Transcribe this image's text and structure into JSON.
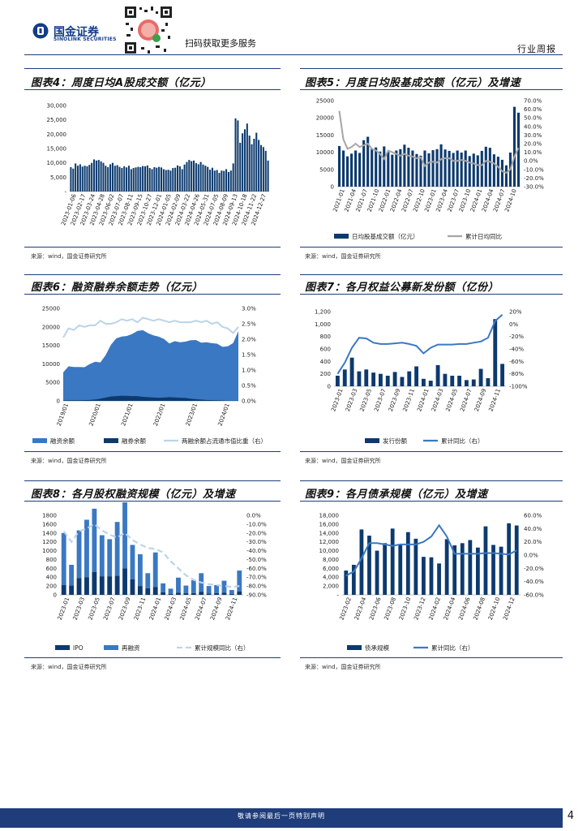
{
  "header": {
    "logo_cn": "国金证券",
    "logo_en": "SINOLINK SECURITIES",
    "scan_text": "扫码获取更多服务",
    "report_type": "行业周报"
  },
  "footer": {
    "disclaimer": "敬请参阅最后一页特别声明",
    "page_number": "4"
  },
  "colors": {
    "navy": "#1f3d7a",
    "bar": "#0d3a6e",
    "blue": "#3b78c3",
    "gray": "#a6a6a6",
    "lightblue": "#bcd4ea"
  },
  "chart_data": [
    {
      "id": "chart4",
      "type": "bar",
      "title": "图表4：周度日均A股成交额（亿元）",
      "source": "来源：wind，国金证券研究所",
      "y_ticks": [
        "30,000",
        "25,000",
        "20,000",
        "15,000",
        "10,000",
        "5,000",
        "-"
      ],
      "ylim": [
        0,
        30000
      ],
      "x_tick_labels": [
        "2023-01-06",
        "2023-02-17",
        "2023-03-24",
        "2023-04-28",
        "2023-06-02",
        "2023-07-07",
        "2023-08-11",
        "2023-09-15",
        "2023-10-27",
        "2023-12-01",
        "2024-01-05",
        "2024-02-09",
        "2024-03-22",
        "2024-04-26",
        "2024-05-31",
        "2024-07-05",
        "2024-08-09",
        "2024-09-13",
        "2024-10-18",
        "2024-11-22",
        "2024-12-27"
      ],
      "values": [
        8500,
        8000,
        9800,
        9000,
        9500,
        8700,
        9000,
        8800,
        9300,
        10000,
        11200,
        10800,
        11000,
        10500,
        10000,
        9000,
        8500,
        9500,
        10000,
        9000,
        9200,
        8600,
        8200,
        8800,
        8400,
        9000,
        7800,
        8200,
        8400,
        8600,
        8500,
        8900,
        8800,
        9100,
        8200,
        7800,
        8500,
        8300,
        8600,
        8400,
        7800,
        7500,
        7600,
        7300,
        8200,
        8300,
        9100,
        8800,
        7800,
        9400,
        10300,
        11000,
        10600,
        10800,
        9900,
        9500,
        10300,
        9400,
        9000,
        8600,
        7600,
        8300,
        7300,
        7500,
        6500,
        7300,
        7200,
        7800,
        6800,
        7300,
        9800,
        25500,
        24800,
        17000,
        20300,
        21700,
        23700,
        19500,
        16500,
        18400,
        20500,
        18000,
        16200,
        15500,
        14200,
        10800
      ]
    },
    {
      "id": "chart5",
      "type": "bar+line",
      "title": "图表5：月度日均股基成交额（亿元）及增速",
      "source": "来源：wind，国金证券研究所",
      "y_ticks": [
        "25000",
        "20000",
        "15000",
        "10000",
        "5000",
        "0"
      ],
      "ylim": [
        0,
        25000
      ],
      "y2_ticks": [
        "70.0%",
        "60.0%",
        "50.0%",
        "40.0%",
        "30.0%",
        "20.0%",
        "10.0%",
        "0.0%",
        "-10.0%",
        "-20.0%",
        "-30.0%"
      ],
      "y2lim": [
        -30,
        70
      ],
      "x_tick_labels": [
        "2021-01",
        "2021-04",
        "2021-07",
        "2021-10",
        "2022-01",
        "2022-04",
        "2022-07",
        "2022-10",
        "2023-01",
        "2023-04",
        "2023-07",
        "2023-10",
        "2024-01",
        "2024-04",
        "2024-07",
        "2024-10"
      ],
      "series": [
        {
          "name": "日均股基成交额（亿元）",
          "values": [
            11800,
            10500,
            8800,
            9600,
            10500,
            9800,
            13500,
            14500,
            11000,
            11400,
            10200,
            11700,
            10100,
            9300,
            10500,
            10900,
            12200,
            11300,
            10500,
            9500,
            9000,
            10500,
            9700,
            10600,
            10900,
            12300,
            10800,
            10400,
            9800,
            10500,
            9900,
            10500,
            8900,
            9600,
            9100,
            10400,
            11600,
            11300,
            9400,
            8700,
            7800,
            6200,
            9900,
            23200,
            21500
          ]
        },
        {
          "name": "累计日均同比",
          "values": [
            58,
            25,
            14,
            16,
            20,
            16,
            18,
            20,
            14,
            12,
            8,
            2,
            12,
            10,
            8,
            6,
            8,
            6,
            5,
            3,
            4,
            -6,
            -2,
            -1,
            -2,
            2,
            3,
            3,
            0,
            0,
            1,
            0,
            -2,
            -3,
            -5,
            -5,
            0,
            -1,
            -3,
            -7,
            -12,
            -14,
            -10,
            5,
            15
          ]
        }
      ]
    },
    {
      "id": "chart6",
      "type": "area+line",
      "title": "图表6：融资融券余额走势（亿元）",
      "source": "来源：wind，国金证券研究所",
      "y_ticks": [
        "25000",
        "20000",
        "15000",
        "10000",
        "5000",
        "0"
      ],
      "ylim": [
        0,
        25000
      ],
      "y2_ticks": [
        "3.0%",
        "2.5%",
        "2.0%",
        "1.5%",
        "1.0%",
        "0.5%",
        "0.0%"
      ],
      "y2lim": [
        0,
        3
      ],
      "x_tick_labels": [
        "2019/01",
        "2020/01",
        "2021/01",
        "2022/01",
        "2023/01",
        "2024/01"
      ],
      "series": [
        {
          "name": "融资余额",
          "values": [
            7600,
            9200,
            9000,
            9000,
            8900,
            9700,
            10200,
            9800,
            11500,
            14000,
            15600,
            16000,
            16200,
            16800,
            17600,
            18000,
            17300,
            16800,
            16500,
            15800,
            14500,
            15200,
            15000,
            15200,
            15800,
            16000,
            15400,
            15600,
            15400,
            15300,
            14500,
            14700,
            15600,
            18800
          ]
        },
        {
          "name": "融券余额",
          "values": [
            100,
            150,
            150,
            150,
            200,
            250,
            400,
            600,
            900,
            1200,
            1300,
            1400,
            1350,
            1300,
            1300,
            1100,
            1000,
            900,
            850,
            900,
            1000,
            950,
            850,
            800,
            600,
            450,
            350,
            250,
            200,
            150,
            100,
            60,
            40,
            40
          ]
        },
        {
          "name": "两融余额占流通市值比重（右）",
          "values": [
            2.05,
            2.35,
            2.3,
            2.45,
            2.4,
            2.45,
            2.45,
            2.6,
            2.5,
            2.5,
            2.55,
            2.65,
            2.6,
            2.65,
            2.55,
            2.7,
            2.65,
            2.6,
            2.65,
            2.6,
            2.55,
            2.6,
            2.55,
            2.55,
            2.55,
            2.6,
            2.55,
            2.6,
            2.5,
            2.55,
            2.4,
            2.35,
            2.2,
            2.4
          ]
        }
      ]
    },
    {
      "id": "chart7",
      "type": "bar+line",
      "title": "图表7：各月权益公募新发份额（亿份）",
      "source": "来源：wind，国金证券研究所",
      "y_ticks": [
        "1,200",
        "1,000",
        "800",
        "600",
        "400",
        "200",
        "0"
      ],
      "ylim": [
        0,
        1200
      ],
      "y2_ticks": [
        "20%",
        "0%",
        "-20%",
        "-40%",
        "-60%",
        "-80%",
        "-100%"
      ],
      "y2lim": [
        -100,
        20
      ],
      "x_tick_labels": [
        "2023-01",
        "2023-03",
        "2023-05",
        "2023-07",
        "2023-09",
        "2023-11",
        "2024-01",
        "2024-03",
        "2024-05",
        "2024-07",
        "2024-09",
        "2024-11"
      ],
      "series": [
        {
          "name": "发行份额",
          "values": [
            170,
            270,
            460,
            240,
            270,
            220,
            200,
            170,
            230,
            150,
            240,
            320,
            120,
            90,
            340,
            200,
            170,
            170,
            100,
            110,
            280,
            130,
            1080,
            360
          ]
        },
        {
          "name": "累计同比（右）",
          "values": [
            -80,
            -62,
            -38,
            -22,
            -23,
            -30,
            -32,
            -32,
            -31,
            -30,
            -32,
            -35,
            -47,
            -38,
            -33,
            -33,
            -33,
            -32,
            -32,
            -30,
            -28,
            -22,
            5,
            15
          ]
        }
      ]
    },
    {
      "id": "chart8",
      "type": "bar+line",
      "title": "图表8：各月股权融资规模（亿元）及增速",
      "source": "来源：wind，国金证券研究所",
      "y_ticks": [
        "1800",
        "1600",
        "1400",
        "1200",
        "1000",
        "800",
        "600",
        "400",
        "200",
        "0"
      ],
      "ylim": [
        0,
        1800
      ],
      "y2_ticks": [
        "0.0%",
        "-10.0%",
        "-20.0%",
        "-30.0%",
        "-40.0%",
        "-50.0%",
        "-60.0%",
        "-70.0%",
        "-80.0%",
        "-90.0%"
      ],
      "y2lim": [
        -90,
        0
      ],
      "x_tick_labels": [
        "2023-01",
        "2023-03",
        "2023-05",
        "2023-07",
        "2023-09",
        "2023-11",
        "2024-01",
        "2024-03",
        "2024-05",
        "2024-07",
        "2024-09",
        "2024-11"
      ],
      "series": [
        {
          "name": "IPO",
          "values": [
            220,
            210,
            380,
            400,
            520,
            420,
            420,
            430,
            600,
            350,
            200,
            150,
            180,
            60,
            20,
            50,
            40,
            40,
            70,
            30,
            40,
            50,
            20,
            80
          ]
        },
        {
          "name": "再融资",
          "values": [
            1180,
            470,
            1080,
            1300,
            1430,
            930,
            840,
            1220,
            1560,
            780,
            720,
            340,
            780,
            200,
            120,
            340,
            170,
            290,
            420,
            170,
            180,
            270,
            90,
            470
          ]
        },
        {
          "name": "累计规模同比（右）",
          "values": [
            -18,
            -30,
            -18,
            -15,
            -10,
            -17,
            -22,
            -25,
            -20,
            -28,
            -33,
            -37,
            -38,
            -42,
            -52,
            -60,
            -68,
            -73,
            -76,
            -78,
            -79,
            -80,
            -81,
            -80
          ]
        }
      ]
    },
    {
      "id": "chart9",
      "type": "bar+line",
      "title": "图表9：各月债承规模（亿元）及增速",
      "source": "来源：wind，国金证券研究所",
      "y_ticks": [
        "18,000",
        "16,000",
        "14,000",
        "12,000",
        "10,000",
        "8,000",
        "6,000",
        "4,000",
        "2,000",
        "-"
      ],
      "ylim": [
        0,
        18000
      ],
      "y2_ticks": [
        "60.0%",
        "40.0%",
        "20.0%",
        "0.0%",
        "-20.0%",
        "-40.0%",
        "-60.0%"
      ],
      "y2lim": [
        -60,
        60
      ],
      "x_tick_labels": [
        "2023-02",
        "2023-04",
        "2023-06",
        "2023-08",
        "2023-10",
        "2023-12",
        "2024-02",
        "2024-04",
        "2024-06",
        "2024-08",
        "2024-10",
        "2024-12"
      ],
      "series": [
        {
          "name": "债承规模",
          "values": [
            5500,
            6800,
            14800,
            13400,
            10000,
            11700,
            15000,
            11400,
            14200,
            12700,
            8600,
            8500,
            7100,
            12600,
            11200,
            11700,
            12400,
            10700,
            15500,
            11300,
            10900,
            16200,
            15700
          ]
        },
        {
          "name": "累计同比（右）",
          "values": [
            -31,
            -25,
            -5,
            18,
            18,
            16,
            14,
            16,
            16,
            16,
            20,
            28,
            45,
            28,
            2,
            2,
            2,
            2,
            3,
            3,
            2,
            1,
            7
          ]
        }
      ]
    }
  ]
}
